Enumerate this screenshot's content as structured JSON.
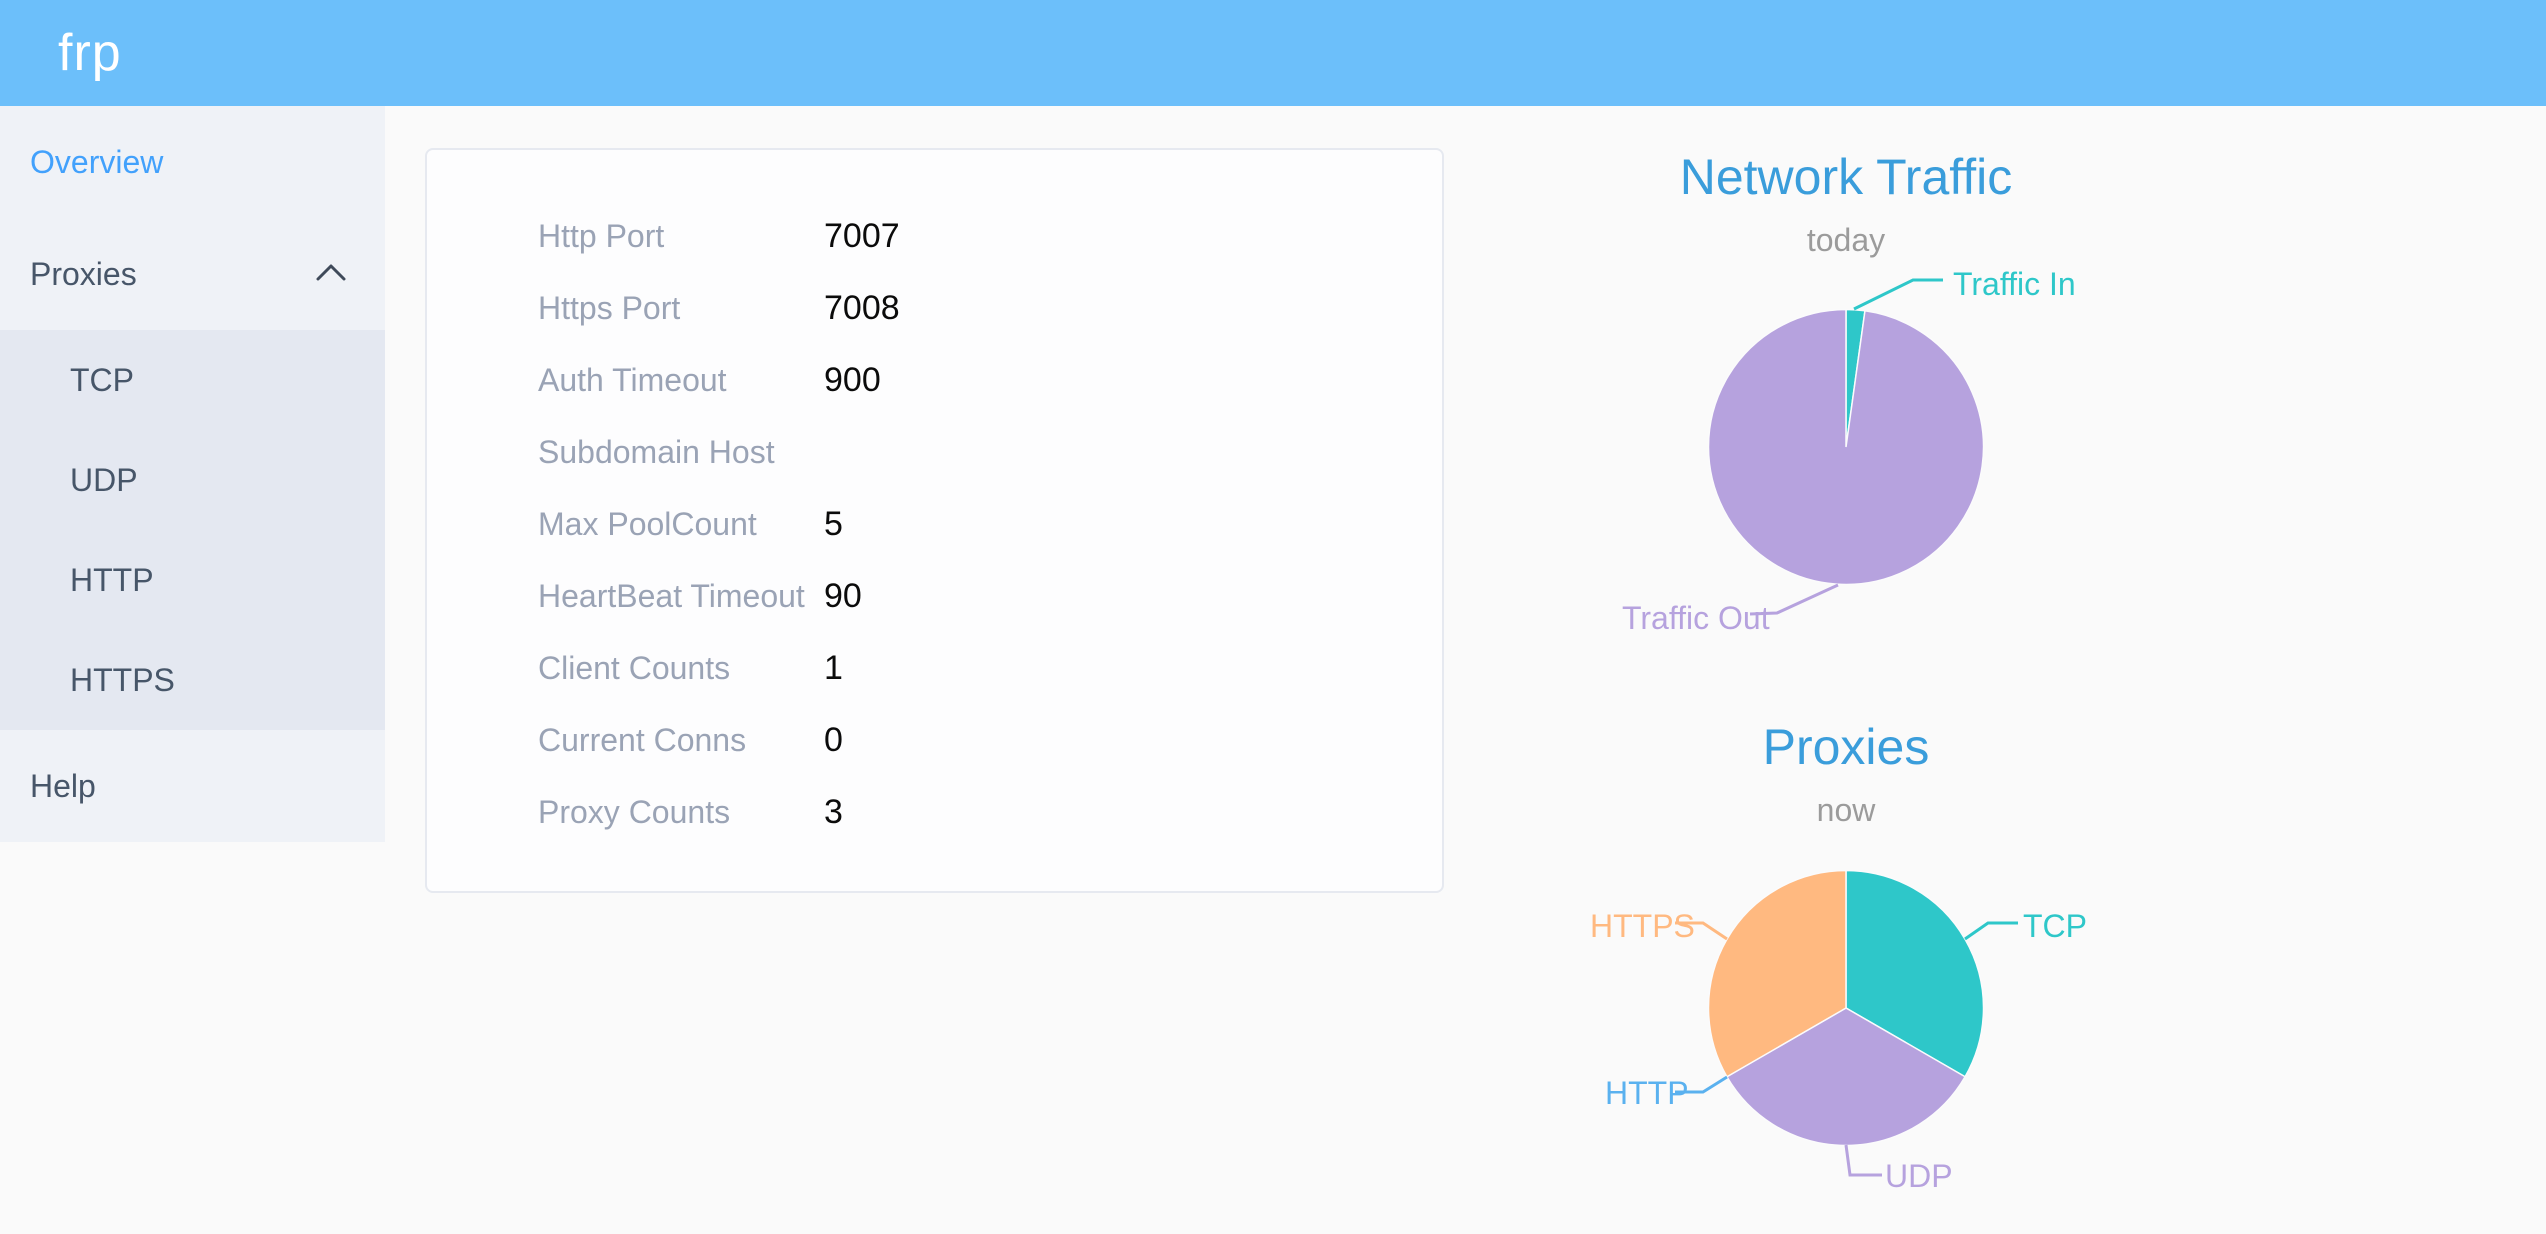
{
  "header": {
    "logo": "frp"
  },
  "sidebar": {
    "items": [
      {
        "id": "overview",
        "label": "Overview",
        "active": true
      },
      {
        "id": "proxies",
        "label": "Proxies",
        "expanded": true,
        "children": [
          {
            "id": "tcp",
            "label": "TCP"
          },
          {
            "id": "udp",
            "label": "UDP"
          },
          {
            "id": "http",
            "label": "HTTP"
          },
          {
            "id": "https",
            "label": "HTTPS"
          }
        ]
      },
      {
        "id": "help",
        "label": "Help"
      }
    ]
  },
  "overview_card": {
    "rows": [
      {
        "label": "Http Port",
        "value": "7007"
      },
      {
        "label": "Https Port",
        "value": "7008"
      },
      {
        "label": "Auth Timeout",
        "value": "900"
      },
      {
        "label": "Subdomain Host",
        "value": ""
      },
      {
        "label": "Max PoolCount",
        "value": "5"
      },
      {
        "label": "HeartBeat Timeout",
        "value": "90"
      },
      {
        "label": "Client Counts",
        "value": "1"
      },
      {
        "label": "Current Conns",
        "value": "0"
      },
      {
        "label": "Proxy Counts",
        "value": "3"
      }
    ]
  },
  "chart_data": [
    {
      "type": "pie",
      "title": "Network Traffic",
      "subtitle": "today",
      "title_color": "#3A9DDB",
      "subtitle_color": "#9B9B9B",
      "legend_position": "none",
      "labels": "outside with leader lines",
      "values_unit": "percent of pie, estimated from arc angles",
      "series": [
        {
          "name": "Traffic In",
          "value": 2.2,
          "color": "#2EC7C9"
        },
        {
          "name": "Traffic Out",
          "value": 97.8,
          "color": "#B6A2DE"
        }
      ]
    },
    {
      "type": "pie",
      "title": "Proxies",
      "subtitle": "now",
      "title_color": "#3A9DDB",
      "subtitle_color": "#9B9B9B",
      "legend_position": "none",
      "labels": "outside with leader lines",
      "values_unit": "proxy count (HTTP slice is zero-width)",
      "series": [
        {
          "name": "TCP",
          "value": 1,
          "color": "#2EC7C9"
        },
        {
          "name": "UDP",
          "value": 1,
          "color": "#B6A2DE"
        },
        {
          "name": "HTTP",
          "value": 0,
          "color": "#5AB1EF"
        },
        {
          "name": "HTTPS",
          "value": 1,
          "color": "#FFB980"
        }
      ]
    }
  ],
  "colors": {
    "header_bg": "#6CBFFA",
    "page_bg": "#FAFAFA",
    "sidebar_bg": "#EFF2F7",
    "submenu_bg": "#E4E8F1",
    "card_bg": "#FDFDFE",
    "card_border": "#E6E9F0",
    "menu_text": "#475669",
    "active_menu_text": "#42A1FC",
    "card_label_text": "#9AA3B5",
    "card_value_text": "#0B0B0B"
  }
}
